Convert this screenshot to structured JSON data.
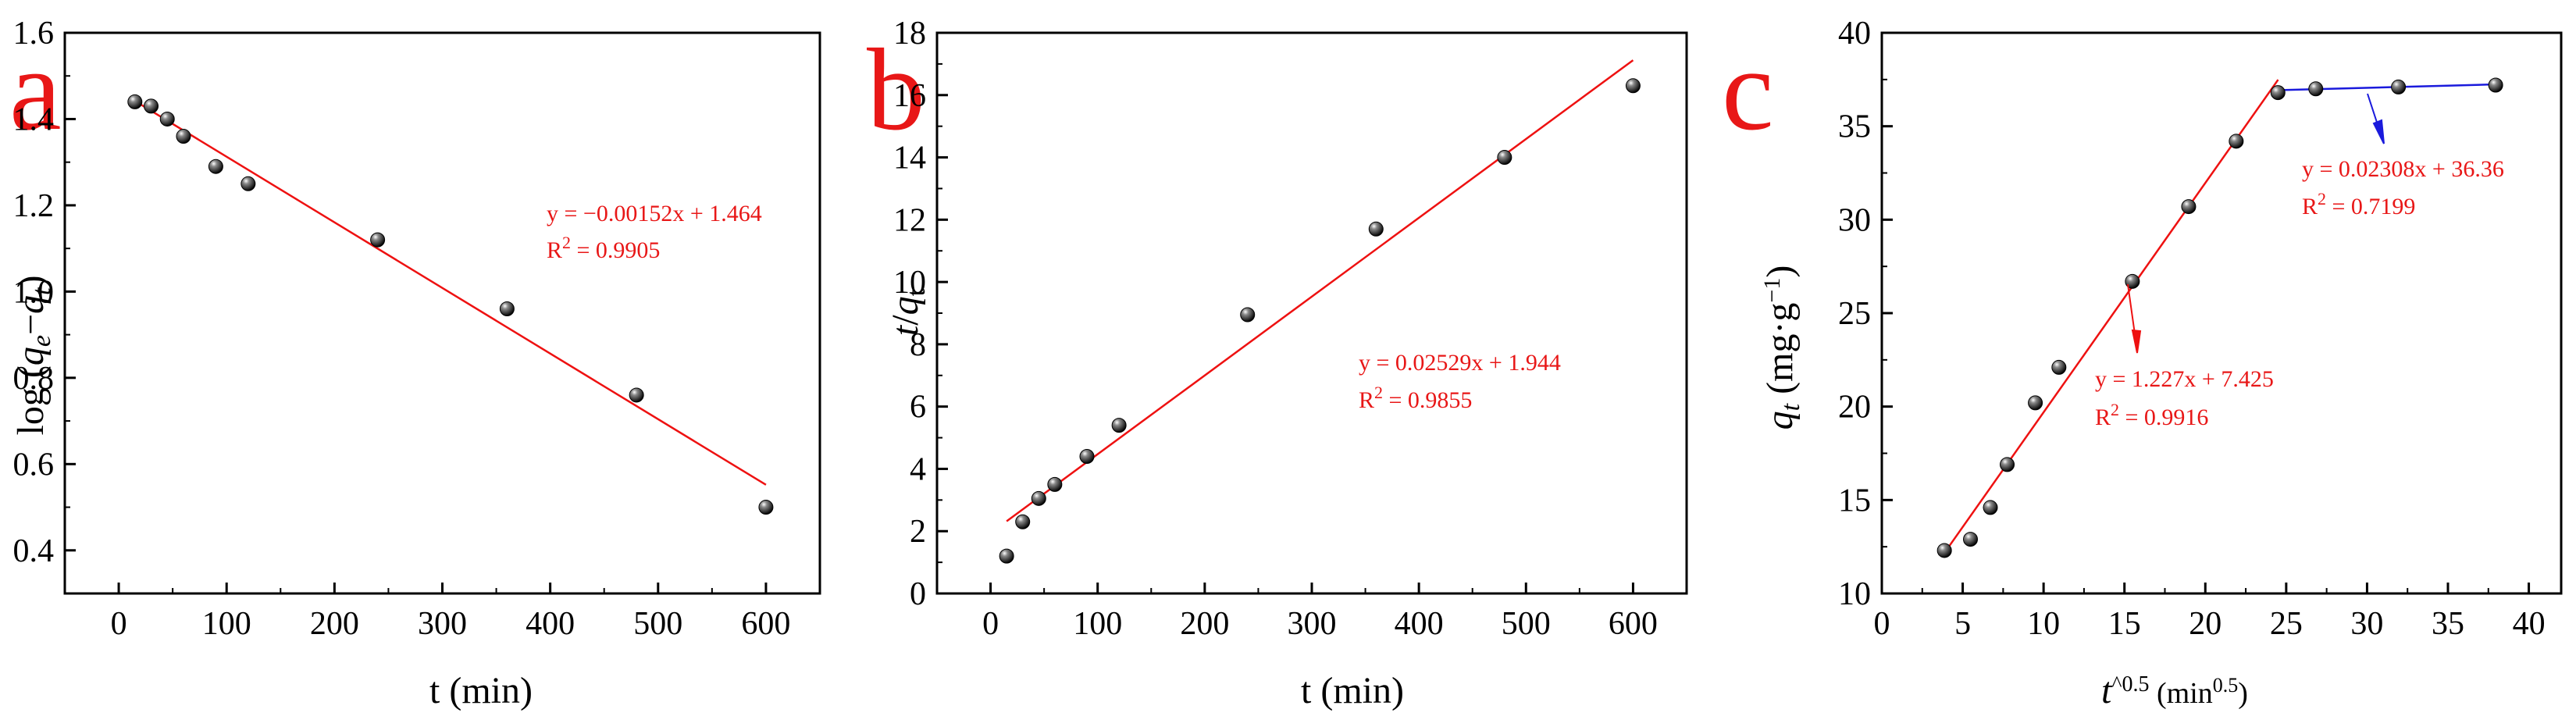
{
  "colors": {
    "fit_red": "#ee1111",
    "fit_blue": "#1a1adc",
    "label_red": "#e81717",
    "axis": "#000000"
  },
  "chart_data": [
    {
      "panel": "a",
      "type": "scatter",
      "xlabel": "t (min)",
      "ylabel": {
        "prefix": "log (",
        "q1": "q",
        "sub1": "e",
        "dash": "−",
        "q2": "q",
        "sub2": "t",
        "suffix": ")"
      },
      "xlim": [
        -50,
        650
      ],
      "ylim": [
        0.3,
        1.6
      ],
      "xticks": [
        0,
        100,
        200,
        300,
        400,
        500,
        600
      ],
      "yticks": [
        0.4,
        0.6,
        0.8,
        1.0,
        1.2,
        1.4,
        1.6
      ],
      "ytick_decimals": 1,
      "x": [
        15,
        30,
        45,
        60,
        90,
        120,
        240,
        360,
        480,
        600
      ],
      "y": [
        1.44,
        1.43,
        1.4,
        1.36,
        1.29,
        1.25,
        1.12,
        0.96,
        0.76,
        0.5
      ],
      "fits": [
        {
          "x": [
            15,
            600
          ],
          "y": [
            1.442,
            0.552
          ],
          "color": "red",
          "equation": "y = −0.00152x + 1.464",
          "r2_label": "R",
          "r2_exp": "2",
          "r2_value": " = 0.9905"
        }
      ]
    },
    {
      "panel": "b",
      "type": "scatter",
      "xlabel": "t (min)",
      "ylabel": {
        "q1": "t",
        "slash": "/",
        "q2": "q",
        "sub2": "t"
      },
      "xlim": [
        -50,
        650
      ],
      "ylim": [
        0,
        18
      ],
      "xticks": [
        0,
        100,
        200,
        300,
        400,
        500,
        600
      ],
      "yticks": [
        0,
        2,
        4,
        6,
        8,
        10,
        12,
        14,
        16,
        18
      ],
      "ytick_decimals": 0,
      "x": [
        15,
        30,
        45,
        60,
        90,
        120,
        240,
        360,
        480,
        600
      ],
      "y": [
        1.2,
        2.3,
        3.05,
        3.5,
        4.4,
        5.4,
        8.95,
        11.7,
        14.0,
        16.3
      ],
      "fits": [
        {
          "x": [
            15,
            600
          ],
          "y": [
            2.32,
            17.12
          ],
          "color": "red",
          "equation": "y = 0.02529x + 1.944",
          "r2_label": "R",
          "r2_exp": "2",
          "r2_value": " = 0.9855"
        }
      ]
    },
    {
      "panel": "c",
      "type": "scatter",
      "xlabel": {
        "var": "t",
        "sup1": "^0.5",
        "mid": " (min",
        "sup2": "0.5",
        "end": ")"
      },
      "ylabel": {
        "q1": "q",
        "sub1": "t",
        "rest": " (mg·g",
        "sup": "−1",
        "end": ")"
      },
      "xlim": [
        0,
        42
      ],
      "ylim": [
        10,
        40
      ],
      "xticks": [
        0,
        5,
        10,
        15,
        20,
        25,
        30,
        35,
        40
      ],
      "yticks": [
        10,
        15,
        20,
        25,
        30,
        35,
        40
      ],
      "ytick_decimals": 0,
      "x": [
        3.87,
        5.48,
        6.71,
        7.75,
        9.49,
        10.95,
        15.49,
        18.97,
        21.91,
        24.49,
        26.83,
        31.94,
        37.95
      ],
      "y": [
        12.3,
        12.9,
        14.6,
        16.9,
        20.2,
        22.1,
        26.7,
        30.7,
        34.2,
        36.8,
        37.0,
        37.1,
        37.2
      ],
      "fits": [
        {
          "x": [
            3.87,
            24.5
          ],
          "y": [
            12.17,
            37.49
          ],
          "color": "red",
          "equation": "y = 1.227x + 7.425",
          "r2_label": "R",
          "r2_exp": "2",
          "r2_value": " = 0.9916"
        },
        {
          "x": [
            24.49,
            37.95
          ],
          "y": [
            36.93,
            37.24
          ],
          "color": "blue",
          "equation": "y = 0.02308x + 36.36",
          "r2_label": "R",
          "r2_exp": "2",
          "r2_value": " = 0.7199"
        }
      ]
    }
  ]
}
